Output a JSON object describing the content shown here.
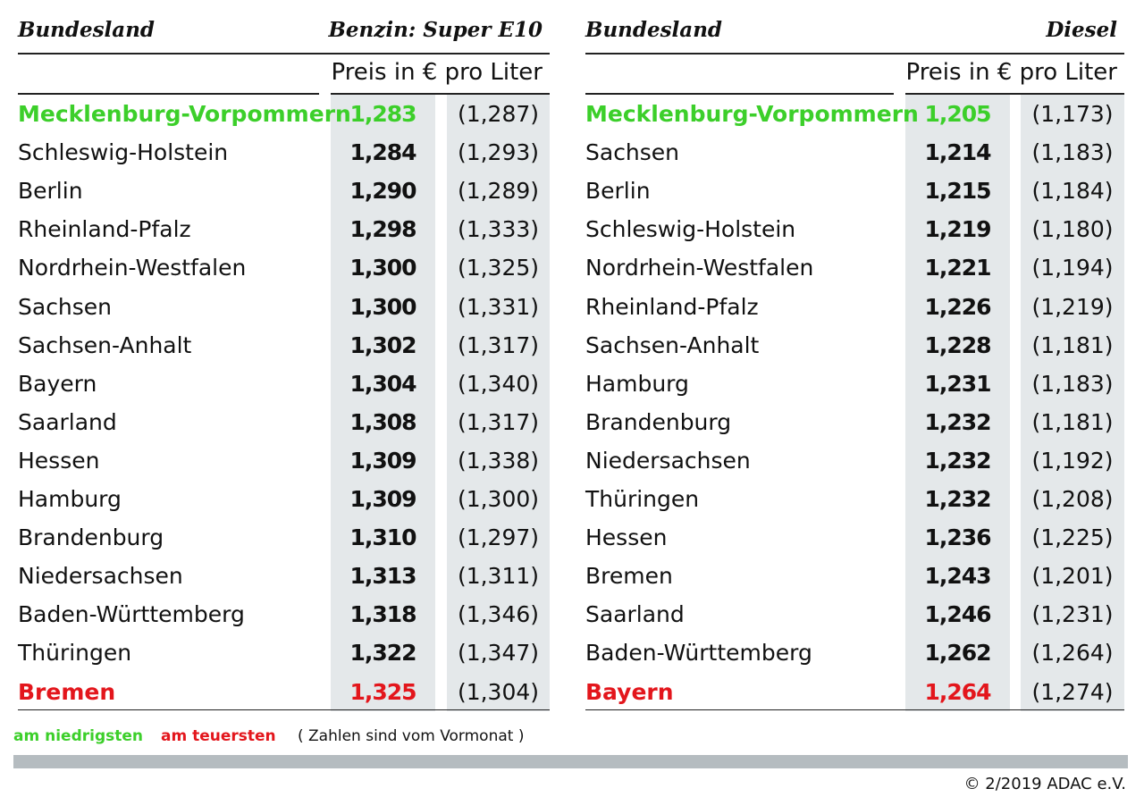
{
  "tables": [
    {
      "name_header": "Bundesland",
      "fuel_header": "Benzin: Super E10",
      "unit": "Preis in € pro Liter",
      "rows": [
        [
          "Mecklenburg-Vorpommern",
          "1,283",
          "(1,287)"
        ],
        [
          "Schleswig-Holstein",
          "1,284",
          "(1,293)"
        ],
        [
          "Berlin",
          "1,290",
          "(1,289)"
        ],
        [
          "Rheinland-Pfalz",
          "1,298",
          "(1,333)"
        ],
        [
          "Nordrhein-Westfalen",
          "1,300",
          "(1,325)"
        ],
        [
          "Sachsen",
          "1,300",
          "(1,331)"
        ],
        [
          "Sachsen-Anhalt",
          "1,302",
          "(1,317)"
        ],
        [
          "Bayern",
          "1,304",
          "(1,340)"
        ],
        [
          "Saarland",
          "1,308",
          "(1,317)"
        ],
        [
          "Hessen",
          "1,309",
          "(1,338)"
        ],
        [
          "Hamburg",
          "1,309",
          "(1,300)"
        ],
        [
          "Brandenburg",
          "1,310",
          "(1,297)"
        ],
        [
          "Niedersachsen",
          "1,313",
          "(1,311)"
        ],
        [
          "Baden-Württemberg",
          "1,318",
          "(1,346)"
        ],
        [
          "Thüringen",
          "1,322",
          "(1,347)"
        ],
        [
          "Bremen",
          "1,325",
          "(1,304)"
        ]
      ]
    },
    {
      "name_header": "Bundesland",
      "fuel_header": "Diesel",
      "unit": "Preis in € pro Liter",
      "rows": [
        [
          "Mecklenburg-Vorpommern",
          "1,205",
          "(1,173)"
        ],
        [
          "Sachsen",
          "1,214",
          "(1,183)"
        ],
        [
          "Berlin",
          "1,215",
          "(1,184)"
        ],
        [
          "Schleswig-Holstein",
          "1,219",
          "(1,180)"
        ],
        [
          "Nordrhein-Westfalen",
          "1,221",
          "(1,194)"
        ],
        [
          "Rheinland-Pfalz",
          "1,226",
          "(1,219)"
        ],
        [
          "Sachsen-Anhalt",
          "1,228",
          "(1,181)"
        ],
        [
          "Hamburg",
          "1,231",
          "(1,183)"
        ],
        [
          "Brandenburg",
          "1,232",
          "(1,181)"
        ],
        [
          "Niedersachsen",
          "1,232",
          "(1,192)"
        ],
        [
          "Thüringen",
          "1,232",
          "(1,208)"
        ],
        [
          "Hessen",
          "1,236",
          "(1,225)"
        ],
        [
          "Bremen",
          "1,243",
          "(1,201)"
        ],
        [
          "Saarland",
          "1,246",
          "(1,231)"
        ],
        [
          "Baden-Württemberg",
          "1,262",
          "(1,264)"
        ],
        [
          "Bayern",
          "1,264",
          "(1,274)"
        ]
      ]
    }
  ],
  "legend": {
    "low": "am niedrigsten",
    "high": "am teuersten",
    "note": "( Zahlen sind vom Vormonat )"
  },
  "copyright": "© 2/2019 ADAC e.V."
}
